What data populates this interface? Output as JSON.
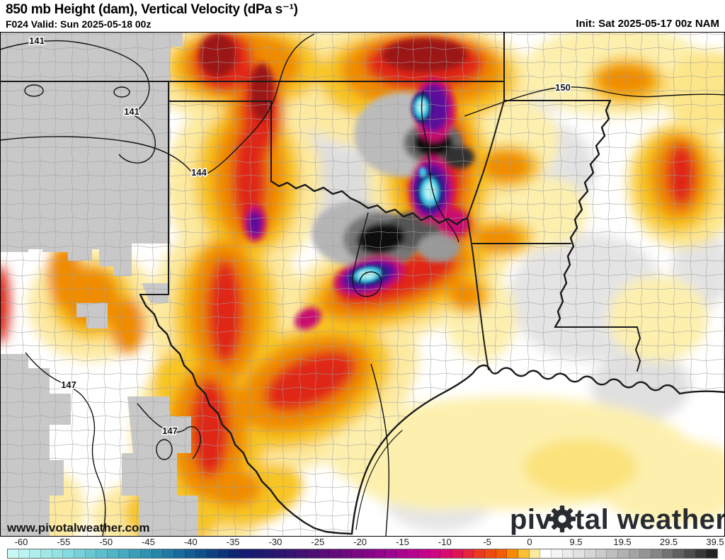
{
  "header": {
    "title": "850 mb Height (dam), Vertical Velocity (dPa s⁻¹)",
    "valid": "F024 Valid: Sun 2025-05-18 00z",
    "init": "Init: Sat 2025-05-17 00z NAM"
  },
  "map": {
    "watermark": "www.pivotalweather.com",
    "logo": {
      "part1": "piv",
      "part2": "tal weather"
    },
    "contour_labels": [
      {
        "text": "141"
      },
      {
        "text": "141"
      },
      {
        "text": "144"
      },
      {
        "text": "147"
      },
      {
        "text": "147"
      },
      {
        "text": "150"
      }
    ]
  },
  "colorbar": {
    "units_negative_interval": 5,
    "units_positive_interval": 10,
    "ticks": [
      "-60",
      "-55",
      "-50",
      "-45",
      "-40",
      "-35",
      "-30",
      "-25",
      "-20",
      "-15",
      "-10",
      "-5",
      "0",
      "9.5",
      "19.5",
      "29.5",
      "39.5"
    ],
    "cells": [
      "#caf8f5",
      "#bcf3f1",
      "#aeeeed",
      "#a0e8e8",
      "#93e2e4",
      "#85dadf",
      "#78d1d9",
      "#6ac8d3",
      "#5dbecd",
      "#51b4c7",
      "#45a9c0",
      "#3a9eb9",
      "#3092b2",
      "#2786aa",
      "#1f79a2",
      "#186b9a",
      "#135d92",
      "#104f89",
      "#0e4181",
      "#0d3378",
      "#0e2673",
      "#121d72",
      "#1a1a71",
      "#231870",
      "#2c1670",
      "#361471",
      "#411273",
      "#4c1075",
      "#570e78",
      "#620c7b",
      "#6d0a7f",
      "#790882",
      "#840687",
      "#90048b",
      "#9c038f",
      "#a90291",
      "#b60291",
      "#c3038c",
      "#ce0681",
      "#d80b71",
      "#de1455",
      "#e4253a",
      "#e93a21",
      "#ee4b0e",
      "#f35c05",
      "#f78a00",
      "#fbbf33",
      "#fdeb9d",
      "#ffffff",
      "#f5f5f5",
      "#ebebeb",
      "#e1e1e1",
      "#d6d6d6",
      "#cbcbcb",
      "#bfbfbf",
      "#b2b2b2",
      "#a4a4a4",
      "#959595",
      "#858585",
      "#737373",
      "#606060",
      "#4c4c4c",
      "#383838",
      "#232323"
    ]
  }
}
